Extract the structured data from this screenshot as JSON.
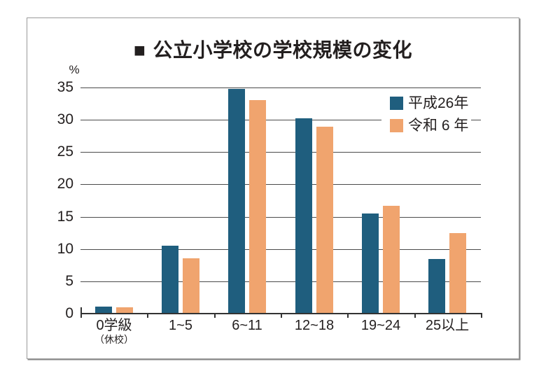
{
  "title": {
    "bullet": "■",
    "text": "公立小学校の学校規模の変化"
  },
  "chart_data": {
    "type": "bar",
    "title": "公立小学校の学校規模の変化",
    "unit_label": "%",
    "categories": [
      "0学級",
      "1~5",
      "6~11",
      "12~18",
      "19~24",
      "25以上"
    ],
    "category_sublabels": [
      "（休校）",
      "",
      "",
      "",
      "",
      ""
    ],
    "series": [
      {
        "name": "平成26年",
        "color": "#1f5e7e",
        "values": [
          1.0,
          10.4,
          34.7,
          30.1,
          15.4,
          8.3
        ]
      },
      {
        "name": "令和 6 年",
        "color": "#f0a46e",
        "values": [
          0.9,
          8.4,
          32.9,
          28.8,
          16.6,
          12.4
        ]
      }
    ],
    "ylim": [
      0,
      35
    ],
    "yticks": [
      0,
      5,
      10,
      15,
      20,
      25,
      30,
      35
    ],
    "grid": true,
    "legend_position": "upper right"
  },
  "colors": {
    "grid": "#4b4b4b",
    "axis": "#333333",
    "text": "#231f1f",
    "frame_border": "#9a9a9a",
    "background": "#ffffff"
  }
}
